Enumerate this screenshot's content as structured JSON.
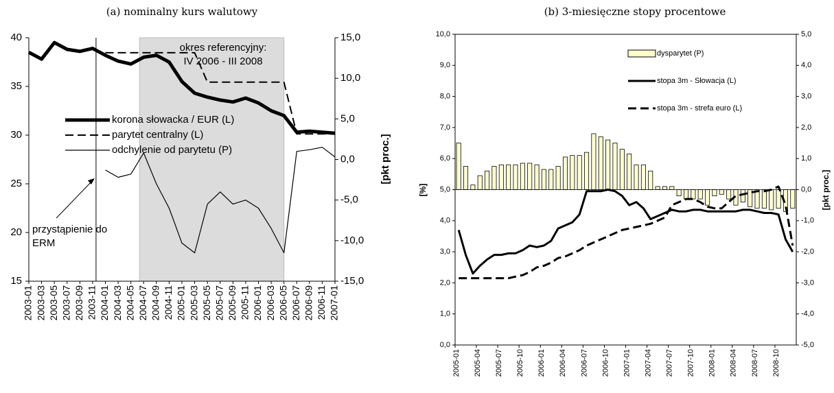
{
  "chart_data": [
    {
      "type": "line",
      "title": "(a) nominalny kurs walutowy",
      "y2_label": "[pkt proc.]",
      "categories": [
        "2003-01",
        "2003-03",
        "2003-05",
        "2003-07",
        "2003-09",
        "2003-11",
        "2004-01",
        "2004-03",
        "2004-05",
        "2004-07",
        "2004-09",
        "2004-11",
        "2005-01",
        "2005-03",
        "2005-05",
        "2005-07",
        "2005-09",
        "2005-11",
        "2006-01",
        "2006-03",
        "2006-05",
        "2006-07",
        "2006-09",
        "2006-11",
        "2007-01"
      ],
      "ylim": [
        15,
        40
      ],
      "yticks": [
        15,
        20,
        25,
        30,
        35,
        40
      ],
      "y2lim": [
        -15,
        15
      ],
      "y2ticks": [
        {
          "value": -15,
          "label": "-15,0"
        },
        {
          "value": -10,
          "label": "-10,0"
        },
        {
          "value": -5,
          "label": "-5,0"
        },
        {
          "value": 0,
          "label": "0,0"
        },
        {
          "value": 5,
          "label": "5,0"
        },
        {
          "value": 10,
          "label": "10,0"
        },
        {
          "value": 15,
          "label": "15,0"
        }
      ],
      "legend": "center-left",
      "shade_range": [
        "2004-07",
        "2006-05"
      ],
      "shade_color": "#dcdcdc",
      "shade_label": [
        "okres referencyjny:",
        "IV 2006 - III 2008"
      ],
      "marker_date": "2003-11",
      "marker_label": [
        "przystąpienie do",
        "ERM"
      ],
      "series": [
        {
          "name": "korona słowacka / EUR (L)",
          "color": "#000000",
          "linestyle": "solid",
          "linewidth": 5,
          "values": [
            38.5,
            37.8,
            39.5,
            38.8,
            38.6,
            38.9,
            38.2,
            37.6,
            37.3,
            38.0,
            38.2,
            37.5,
            35.5,
            34.3,
            33.9,
            33.6,
            33.4,
            33.8,
            33.3,
            32.5,
            32.0,
            30.3,
            30.4,
            30.3,
            30.2
          ]
        },
        {
          "name": "parytet centralny (L)",
          "color": "#000000",
          "linestyle": "dashed",
          "linewidth": 2,
          "values": [
            null,
            null,
            null,
            null,
            null,
            null,
            38.46,
            38.46,
            38.46,
            38.46,
            38.46,
            38.46,
            38.46,
            38.46,
            35.44,
            35.44,
            35.44,
            35.44,
            35.44,
            35.44,
            35.44,
            30.13,
            30.13,
            30.13,
            30.13
          ]
        },
        {
          "name": "odchylenie od parytetu (P)",
          "color": "#000000",
          "linestyle": "solid",
          "linewidth": 1.2,
          "axis": "y2",
          "values": [
            null,
            null,
            null,
            null,
            null,
            null,
            -1.3,
            -2.2,
            -1.8,
            0.8,
            -3.0,
            -6.0,
            -10.3,
            -11.5,
            -5.5,
            -4.0,
            -5.5,
            -5.0,
            -6.0,
            -8.5,
            -11.5,
            1.0,
            1.2,
            1.5,
            0.3
          ]
        }
      ]
    },
    {
      "type": "bar-line",
      "title": "(b) 3-miesięczne stopy procentowe",
      "y_label": "[%]",
      "y2_label": "[pkt proc.]",
      "categories": [
        "2005-01",
        null,
        null,
        "2005-04",
        null,
        null,
        "2005-07",
        null,
        null,
        "2005-10",
        null,
        null,
        "2006-01",
        null,
        null,
        "2006-04",
        null,
        null,
        "2006-07",
        null,
        null,
        "2006-10",
        null,
        null,
        "2007-01",
        null,
        null,
        "2007-04",
        null,
        null,
        "2007-07",
        null,
        null,
        "2007-10",
        null,
        null,
        "2008-01",
        null,
        null,
        "2008-04",
        null,
        null,
        "2008-07",
        null,
        null,
        "2008-10",
        null,
        null
      ],
      "ylim": [
        0,
        10
      ],
      "yticks": [
        {
          "value": 0,
          "label": "0,0"
        },
        {
          "value": 1,
          "label": "1,0"
        },
        {
          "value": 2,
          "label": "2,0"
        },
        {
          "value": 3,
          "label": "3,0"
        },
        {
          "value": 4,
          "label": "4,0"
        },
        {
          "value": 5,
          "label": "5,0"
        },
        {
          "value": 6,
          "label": "6,0"
        },
        {
          "value": 7,
          "label": "7,0"
        },
        {
          "value": 8,
          "label": "8,0"
        },
        {
          "value": 9,
          "label": "9,0"
        },
        {
          "value": 10,
          "label": "10,0"
        }
      ],
      "y2lim": [
        -5,
        5
      ],
      "y2ticks": [
        {
          "value": -5,
          "label": "-5,0"
        },
        {
          "value": -4,
          "label": "-4,0"
        },
        {
          "value": -3,
          "label": "-3,0"
        },
        {
          "value": -2,
          "label": "-2,0"
        },
        {
          "value": -1,
          "label": "-1,0"
        },
        {
          "value": 0,
          "label": "0,0"
        },
        {
          "value": 1,
          "label": "1,0"
        },
        {
          "value": 2,
          "label": "2,0"
        },
        {
          "value": 3,
          "label": "3,0"
        },
        {
          "value": 4,
          "label": "4,0"
        },
        {
          "value": 5,
          "label": "5,0"
        }
      ],
      "legend": "top-right",
      "series": [
        {
          "name": "dysparytet (P)",
          "type": "bar",
          "color": "#ffffcc",
          "axis": "y2",
          "values": [
            1.5,
            0.75,
            0.15,
            0.45,
            0.6,
            0.75,
            0.8,
            0.8,
            0.8,
            0.85,
            0.85,
            0.8,
            0.65,
            0.65,
            0.75,
            1.05,
            1.1,
            1.1,
            1.2,
            1.8,
            1.7,
            1.6,
            1.5,
            1.3,
            1.15,
            0.8,
            0.8,
            0.6,
            0.1,
            0.1,
            0.1,
            -0.2,
            -0.3,
            -0.3,
            -0.3,
            -0.5,
            -0.2,
            -0.15,
            -0.3,
            -0.5,
            -0.4,
            -0.55,
            -0.6,
            -0.6,
            -0.65,
            -0.6,
            -0.7,
            -0.6
          ]
        },
        {
          "name": "stopa 3m - Słowacja (L)",
          "type": "line",
          "color": "#000000",
          "linestyle": "solid",
          "linewidth": 3,
          "values": [
            3.7,
            2.9,
            2.3,
            2.55,
            2.75,
            2.9,
            2.9,
            2.95,
            2.95,
            3.05,
            3.2,
            3.15,
            3.2,
            3.35,
            3.75,
            3.85,
            3.95,
            4.2,
            4.95,
            4.95,
            4.95,
            5.0,
            4.95,
            4.8,
            4.5,
            4.6,
            4.4,
            4.05,
            4.15,
            4.25,
            4.35,
            4.3,
            4.3,
            4.35,
            4.35,
            4.3,
            4.3,
            4.3,
            4.3,
            4.3,
            4.35,
            4.35,
            4.3,
            4.25,
            4.25,
            4.2,
            3.4,
            3.0
          ]
        },
        {
          "name": "stopa 3m - strefa euro (L)",
          "type": "line",
          "color": "#000000",
          "linestyle": "dashed",
          "linewidth": 3,
          "values": [
            2.15,
            2.15,
            2.15,
            2.15,
            2.15,
            2.15,
            2.15,
            2.15,
            2.2,
            2.25,
            2.35,
            2.5,
            2.55,
            2.65,
            2.8,
            2.85,
            2.95,
            3.05,
            3.2,
            3.3,
            3.4,
            3.5,
            3.6,
            3.7,
            3.75,
            3.8,
            3.85,
            3.9,
            4.0,
            4.1,
            4.5,
            4.6,
            4.7,
            4.7,
            4.6,
            4.45,
            4.4,
            4.4,
            4.6,
            4.8,
            4.85,
            4.9,
            4.95,
            4.95,
            5.0,
            5.1,
            4.5,
            3.2
          ]
        }
      ]
    }
  ]
}
